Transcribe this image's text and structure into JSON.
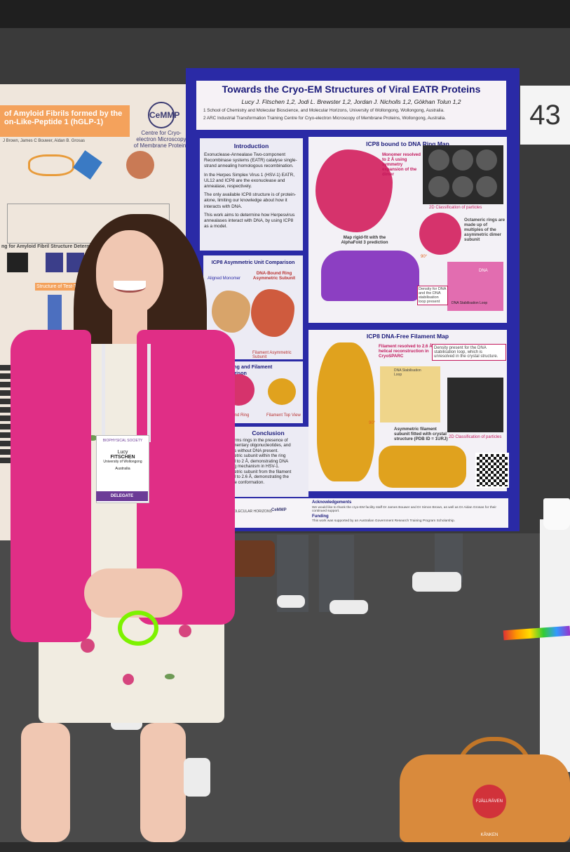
{
  "left_poster": {
    "title_line1": "of Amyloid Fibrils formed by the",
    "title_line2": "on-Like-Peptide 1 (hGLP-1)",
    "authors": "J Brown, James C Bouwer, Aidan B. Grosas",
    "logo_text": "CeMMP",
    "logo_caption": "Centre for Cryo-electron Microscopy of Membrane Proteins",
    "section_label": "ng for Amyloid Fibril Structure Determination by Cryo-EM",
    "structure_label": "Structure of Test-Twist"
  },
  "booth_number": "43",
  "poster": {
    "title": "Towards the Cryo-EM Structures of Viral EATR Proteins",
    "authors": "Lucy J. Fitschen 1,2, Jodi L. Brewster 1,2, Jordan J. Nicholls 1,2, Gökhan Tolun 1,2",
    "affiliation1": "1 School of Chemistry and Molecular Bioscience, and Molecular Horizons, University of Wollongong, Wollongong, Australia.",
    "affiliation2": "2 ARC Industrial Transformation Training Centre for Cryo-electron Microscopy of Membrane Proteins, Wollongong, Australia.",
    "introduction": {
      "heading": "Introduction",
      "bullets": [
        "Exonuclease-Annealase Two-component Recombinase systems (EATR) catalyse single-strand annealing homologous recombination.",
        "In the Herpes Simplex Virus 1 (HSV-1) EATR, UL12 and ICP8 are the exonuclease and annealase, respectively.",
        "The only available ICP8 structure is of protein-alone, limiting our knowledge about how it interacts with DNA.",
        "This work aims to determine how Herpesvirus annealases interact with DNA, by using ICP8 as a model."
      ]
    },
    "asym_panel": {
      "heading": "ICP8 Asymmetric Unit Comparison",
      "label_aligned": "Aligned Monomer",
      "label_dna_bound": "DNA-Bound Ring Asymmetric Subunit",
      "label_filament": "Filament Asymmetric Subunit"
    },
    "ring_filament_panel": {
      "heading": "CP8 Ring and Filament Comparison",
      "label_ring": "Bound Ring",
      "label_filament": "Filament Top View"
    },
    "conclusion": {
      "heading": "Conclusion",
      "lines": [
        "forms rings in the presence of",
        "ementary oligonucleotides, and",
        "nts without DNA present.",
        "metric subunit within the ring",
        "ed to 2 Å, demonstrating DNA",
        "ing mechanism in HSV-1.",
        "metric subunit from the filament",
        "ed to 2.6 Å, demonstrating the",
        "ree conformation."
      ]
    },
    "ring_map": {
      "heading": "ICP8 bound to DNA Ring Map",
      "monomer_note": "Monomer resolved to 2 Å using symmetry expansion of the dimer",
      "rigid_fit_note": "Map rigid-fit with the AlphaFold 3 prediction",
      "class_caption": "2D Classification of particles",
      "octamer_note": "Octameric rings are made up of multiples of the asymmetric dimer subunit",
      "rotation": "90°",
      "dna_label": "DNA",
      "density_note": "Density for DNA and the DNA stabilisation loop present",
      "loop_label": "DNA Stabilisation Loop"
    },
    "filament_map": {
      "heading": "ICP8 DNA-Free Filament Map",
      "resolution_note": "Filament resolved to 2.6 Å using helical reconstruction in CryoSPARC",
      "density_note": "Density present for the DNA stabilisation loop, which is unresolved in the crystal structure.",
      "loop_label": "DNA Stabilisation Loop",
      "rotation": "90°",
      "fit_note": "Asymmetric filament subunit fitted with crystal structure (PDB ID = 1URJ)",
      "class_caption": "2D Classification of particles"
    },
    "footer": {
      "ack_heading": "Acknowledgements",
      "ack_text": "We would like to thank the cryo-EM facility staff Dr James Bouwer and Dr Simon Brown, as well as Dr Aidan Grosas for their continued support.",
      "funding_heading": "Funding",
      "funding_text": "This work was supported by an Australian Government Research Training Program Scholarship.",
      "logo1": "MOLECULAR HORIZONS",
      "logo2": "CeMMP"
    }
  },
  "badge": {
    "event": "BIOPHYSICAL SOCIETY",
    "first_name": "Lucy",
    "last_name": "FITSCHEN",
    "institution": "University of Wollongong",
    "country": "Australia",
    "role": "DELEGATE"
  },
  "bag_logo": "FJÄLLRÄVEN KÅNKEN",
  "colors": {
    "poster_border": "#2a2aa6",
    "poster_title": "#1b1b7a",
    "ring_map": "#d6336c",
    "filament_map": "#e0a21e",
    "jacket": "#e02e86"
  }
}
